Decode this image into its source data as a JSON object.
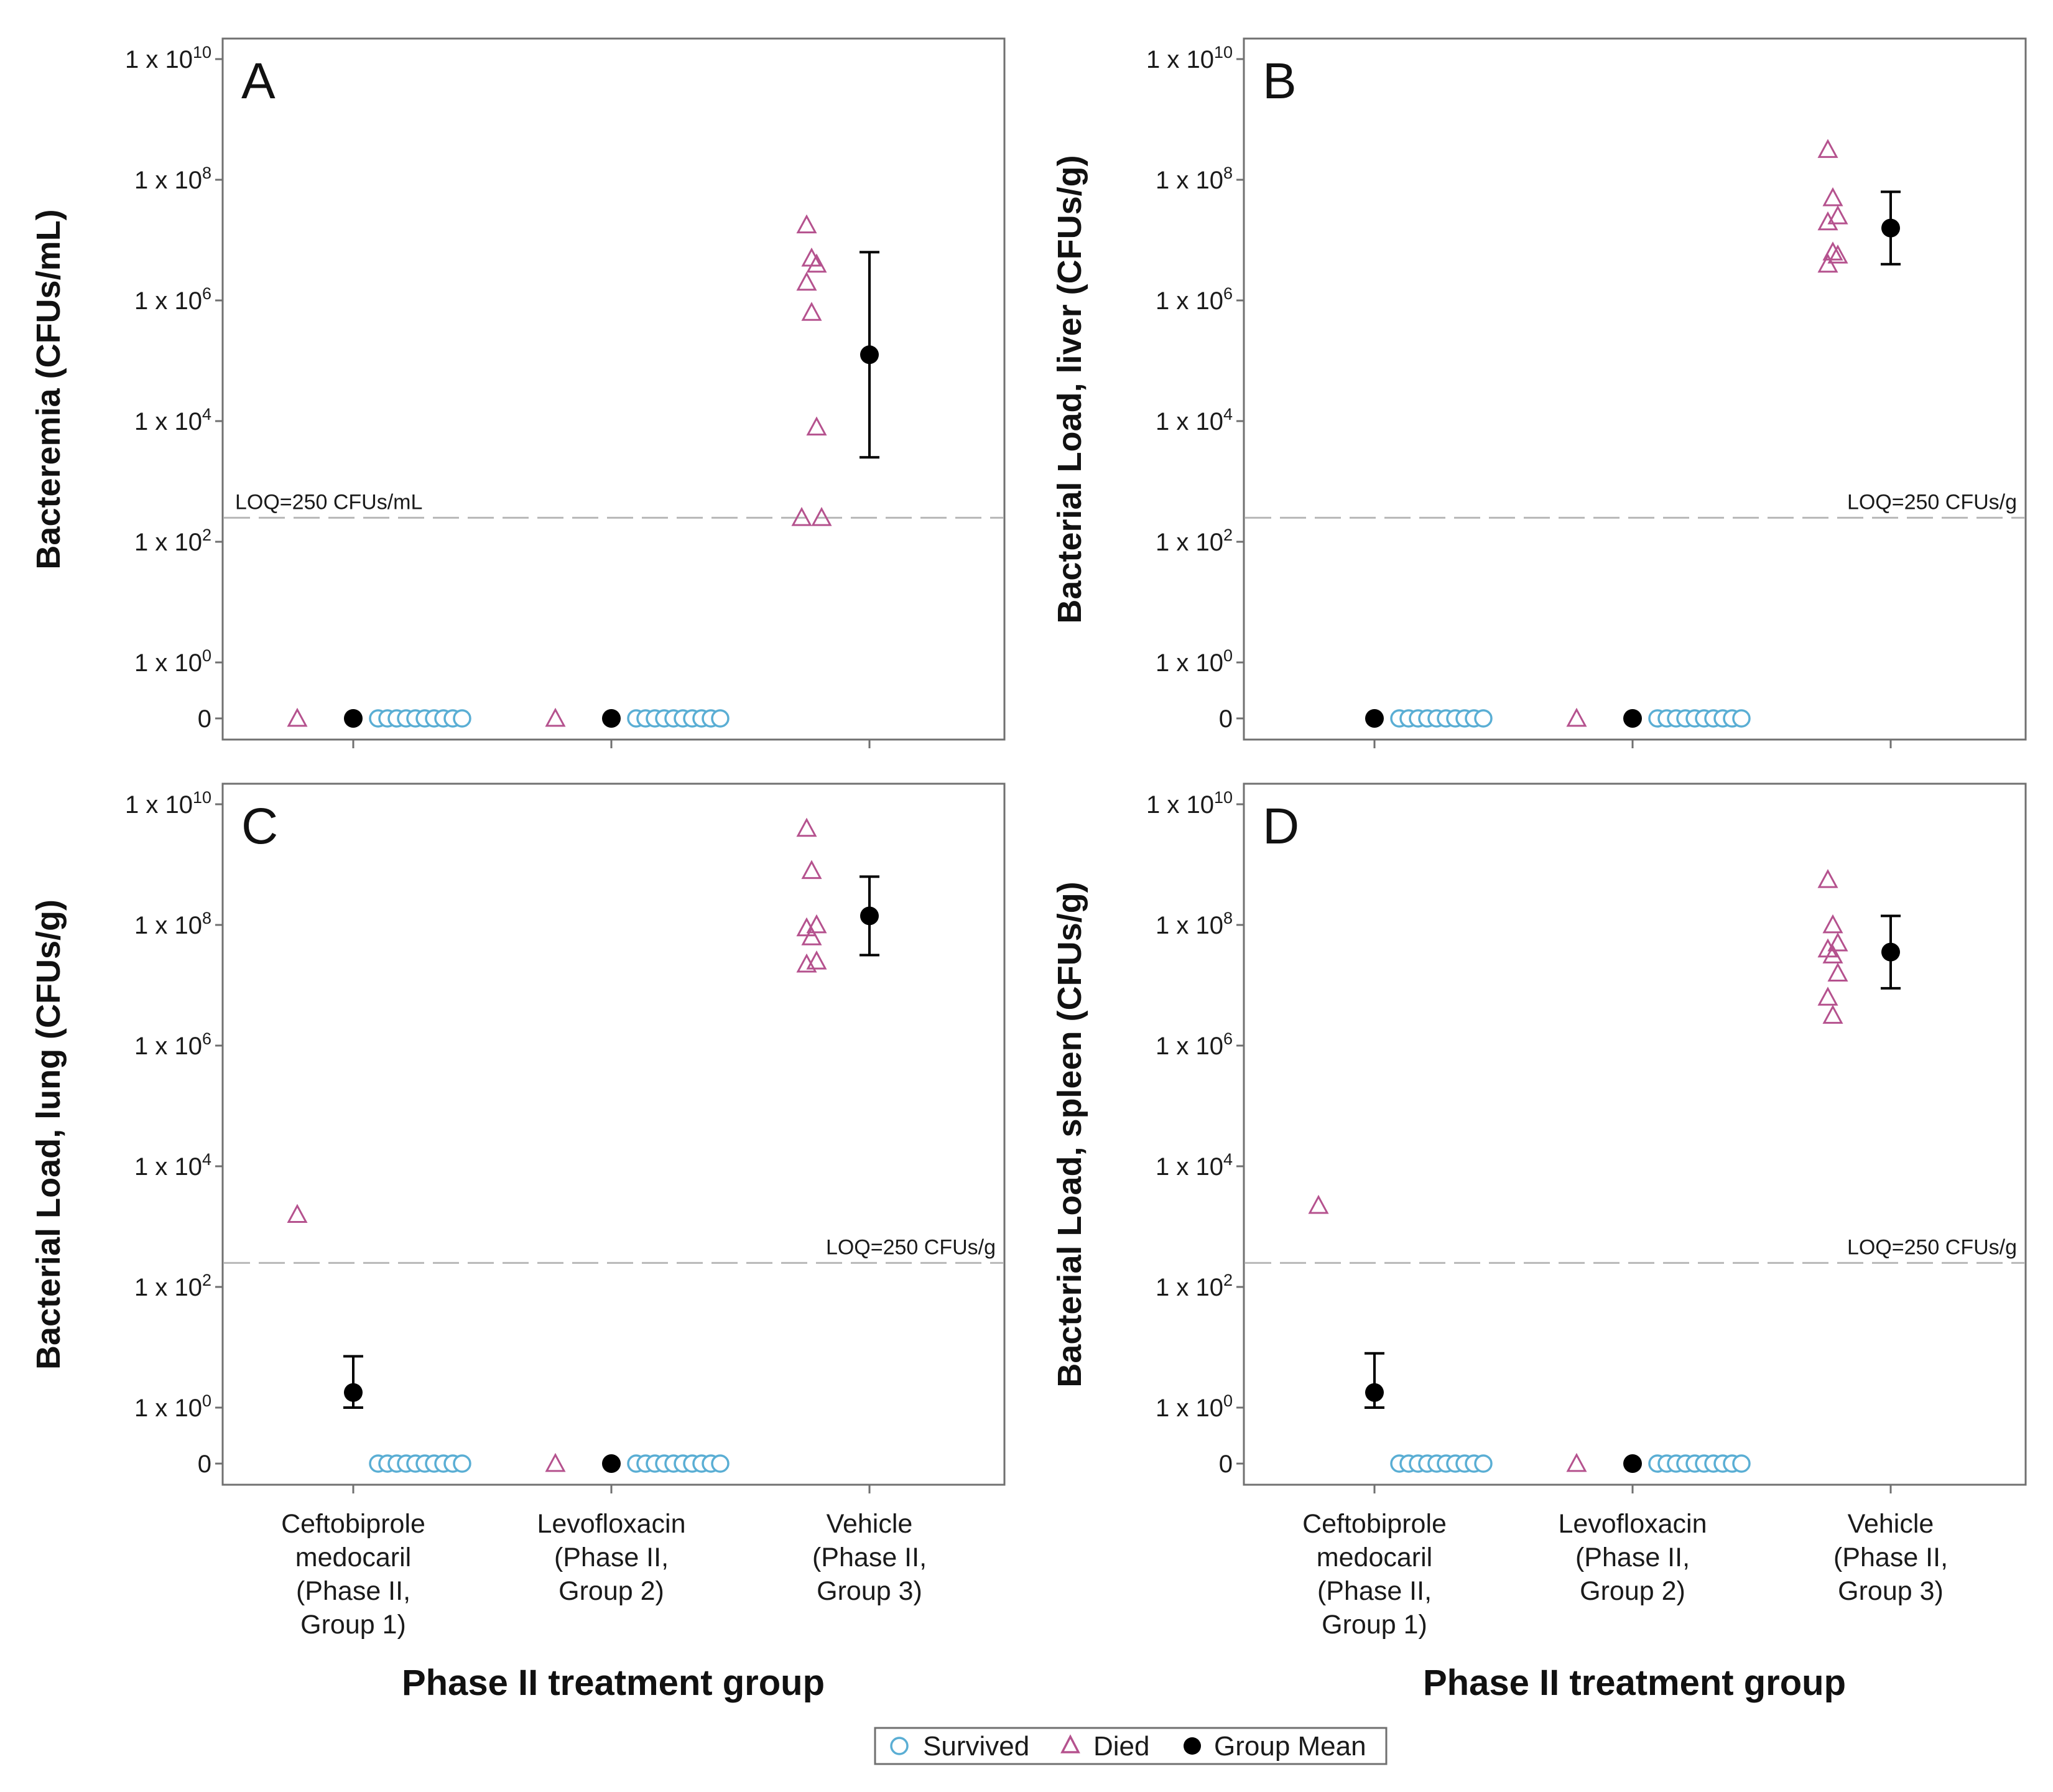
{
  "figure": {
    "x_title": "Phase II treatment group",
    "categories": [
      [
        "Ceftobiprole",
        "medocaril",
        "(Phase II,",
        "Group 1)"
      ],
      [
        "Levofloxacin",
        "(Phase II,",
        "Group 2)"
      ],
      [
        "Vehicle",
        "(Phase II,",
        "Group 3)"
      ]
    ],
    "y_ticks": [
      {
        "exp": 10,
        "label": "1 x 10",
        "sup": "10"
      },
      {
        "exp": 8,
        "label": "1 x 10",
        "sup": "8"
      },
      {
        "exp": 6,
        "label": "1 x 10",
        "sup": "6"
      },
      {
        "exp": 4,
        "label": "1 x 10",
        "sup": "4"
      },
      {
        "exp": 2,
        "label": "1 x 10",
        "sup": "2"
      },
      {
        "exp": 0,
        "label": "1 x 10",
        "sup": "0"
      }
    ],
    "zero_label": "0"
  },
  "legend": {
    "items": [
      {
        "marker": "circle-open",
        "label": "Survived",
        "color": "#5aaed4"
      },
      {
        "marker": "triangle-open",
        "label": "Died",
        "color": "#b5528e"
      },
      {
        "marker": "circle-filled",
        "label": "Group Mean",
        "color": "#000000"
      }
    ]
  },
  "colors": {
    "survived": "#5aaed4",
    "died": "#b5528e",
    "mean": "#000000",
    "loq_line": "#b8b8b8",
    "frame": "#707070"
  },
  "chart_data": [
    {
      "type": "scatter",
      "panel": "A",
      "ylabel": "Bacteremia (CFUs/mL)",
      "yscale": "log10 with zero category",
      "ylim_log10": [
        -1,
        10.3
      ],
      "loq": {
        "value": 250,
        "label": "LOQ=250 CFUs/mL",
        "label_position": "left"
      },
      "groups": [
        {
          "survived_count": 10,
          "died_log10": [
            "zero"
          ],
          "mean_log10": "zero"
        },
        {
          "survived_count": 10,
          "died_log10": [
            "zero"
          ],
          "mean_log10": "zero"
        },
        {
          "survived_count": 0,
          "died_log10": [
            7.25,
            6.7,
            6.6,
            6.3,
            5.8,
            3.9,
            2.4,
            2.4
          ],
          "mean_log10": 5.1,
          "err_log10": [
            3.4,
            6.8
          ]
        }
      ]
    },
    {
      "type": "scatter",
      "panel": "B",
      "ylabel": "Bacterial Load, liver (CFUs/g)",
      "yscale": "log10 with zero category",
      "ylim_log10": [
        -1,
        10.3
      ],
      "loq": {
        "value": 250,
        "label": "LOQ=250 CFUs/g",
        "label_position": "right"
      },
      "groups": [
        {
          "survived_count": 10,
          "died_log10": [],
          "mean_log10": "zero"
        },
        {
          "survived_count": 10,
          "died_log10": [
            "zero"
          ],
          "mean_log10": "zero"
        },
        {
          "survived_count": 0,
          "died_log10": [
            8.5,
            7.7,
            7.4,
            7.3,
            6.8,
            6.75,
            6.6
          ],
          "mean_log10": 7.2,
          "err_log10": [
            6.6,
            7.8
          ]
        }
      ]
    },
    {
      "type": "scatter",
      "panel": "C",
      "ylabel": "Bacterial Load, lung (CFUs/g)",
      "yscale": "log10 with zero category",
      "ylim_log10": [
        -1,
        10.3
      ],
      "loq": {
        "value": 250,
        "label": "LOQ=250 CFUs/g",
        "label_position": "right"
      },
      "groups": [
        {
          "survived_count": 10,
          "died_log10": [
            3.2
          ],
          "mean_log10": 0.25,
          "err_log10": [
            0.0,
            0.85
          ]
        },
        {
          "survived_count": 10,
          "died_log10": [
            "zero"
          ],
          "mean_log10": "zero"
        },
        {
          "survived_count": 0,
          "died_log10": [
            9.6,
            8.9,
            8.0,
            7.95,
            7.8,
            7.4,
            7.35
          ],
          "mean_log10": 8.15,
          "err_log10": [
            7.5,
            8.8
          ]
        }
      ]
    },
    {
      "type": "scatter",
      "panel": "D",
      "ylabel": "Bacterial Load, spleen (CFUs/g)",
      "yscale": "log10 with zero category",
      "ylim_log10": [
        -1,
        10.3
      ],
      "loq": {
        "value": 250,
        "label": "LOQ=250 CFUs/g",
        "label_position": "right"
      },
      "groups": [
        {
          "survived_count": 10,
          "died_log10": [
            3.35
          ],
          "mean_log10": 0.25,
          "err_log10": [
            0.0,
            0.9
          ]
        },
        {
          "survived_count": 10,
          "died_log10": [
            "zero"
          ],
          "mean_log10": "zero"
        },
        {
          "survived_count": 0,
          "died_log10": [
            8.75,
            8.0,
            7.7,
            7.6,
            7.5,
            7.2,
            6.8,
            6.5
          ],
          "mean_log10": 7.55,
          "err_log10": [
            6.95,
            8.15
          ]
        }
      ]
    }
  ]
}
